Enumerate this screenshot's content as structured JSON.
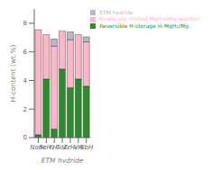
{
  "chart_data": {
    "type": "bar",
    "stacked": true,
    "categories": [
      "None",
      "ScH₂",
      "YH₃",
      "TiH₂",
      "ZrH₂",
      "VH",
      "NbH"
    ],
    "series": [
      {
        "name": "Reversible H-storage in MgH₂/Mg",
        "color": "#2e8b2e",
        "values": [
          0.2,
          4.1,
          0.6,
          4.8,
          3.5,
          4.1,
          3.6
        ]
      },
      {
        "name": "Kinetically limited MgH₂↔Mg reaction",
        "color": "#ffb6c8",
        "values": [
          7.35,
          3.1,
          5.8,
          2.65,
          3.35,
          3.1,
          3.1
        ]
      },
      {
        "name": "ETM hydride",
        "color": "#b8b8c8",
        "values": [
          0.0,
          0.0,
          0.5,
          0.0,
          0.55,
          0.0,
          0.35
        ]
      }
    ],
    "xlabel": "ETM hydride",
    "ylabel": "H-content (wt.%)",
    "ylim": [
      0,
      9.0
    ],
    "yticks": [
      0,
      2,
      4,
      6,
      8
    ],
    "legend": "upper right",
    "grid": false
  }
}
